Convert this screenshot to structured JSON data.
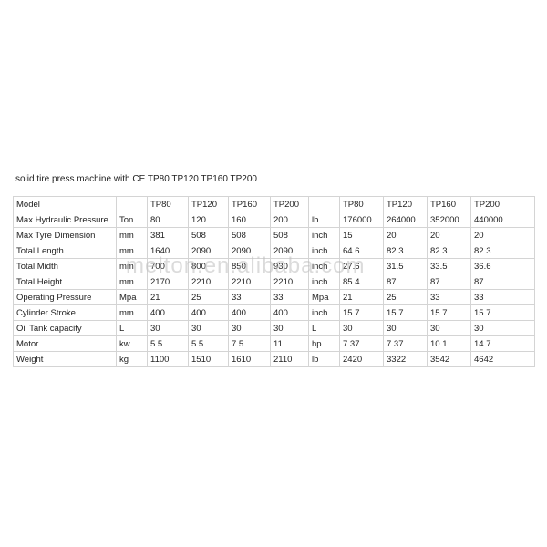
{
  "title": "solid tire press machine with CE TP80 TP120 TP160 TP200",
  "watermark": "melton.en.alibaba.com",
  "table": {
    "header": {
      "label": "Model",
      "metric": [
        "TP80",
        "TP120",
        "TP160",
        "TP200"
      ],
      "imperial": [
        "TP80",
        "TP120",
        "TP160",
        "TP200"
      ]
    },
    "rows": [
      {
        "name": "Max Hydraulic Pressure",
        "unit": "Ton",
        "metric": [
          80,
          120,
          160,
          200
        ],
        "imperial_unit": "lb",
        "imperial": [
          176000,
          264000,
          352000,
          440000
        ]
      },
      {
        "name": "Max Tyre Dimension",
        "unit": "mm",
        "metric": [
          381,
          508,
          508,
          508
        ],
        "imperial_unit": "inch",
        "imperial": [
          15,
          20,
          20,
          20
        ]
      },
      {
        "name": "Total Length",
        "unit": "mm",
        "metric": [
          1640,
          2090,
          2090,
          2090
        ],
        "imperial_unit": "inch",
        "imperial": [
          64.6,
          82.3,
          82.3,
          82.3
        ]
      },
      {
        "name": "Total Midth",
        "unit": "mm",
        "metric": [
          700,
          800,
          850,
          930
        ],
        "imperial_unit": "inch",
        "imperial": [
          27.6,
          31.5,
          33.5,
          36.6
        ]
      },
      {
        "name": "Total Height",
        "unit": "mm",
        "metric": [
          2170,
          2210,
          2210,
          2210
        ],
        "imperial_unit": "inch",
        "imperial": [
          85.4,
          87,
          87,
          87
        ]
      },
      {
        "name": "Operating Pressure",
        "unit": "Mpa",
        "metric": [
          21,
          25,
          33,
          33
        ],
        "imperial_unit": "Mpa",
        "imperial": [
          21,
          25,
          33,
          33
        ]
      },
      {
        "name": "Cylinder Stroke",
        "unit": "mm",
        "metric": [
          400,
          400,
          400,
          400
        ],
        "imperial_unit": "inch",
        "imperial": [
          15.7,
          15.7,
          15.7,
          15.7
        ]
      },
      {
        "name": "Oil Tank capacity",
        "unit": "L",
        "metric": [
          30,
          30,
          30,
          30
        ],
        "imperial_unit": "L",
        "imperial": [
          30,
          30,
          30,
          30
        ]
      },
      {
        "name": "Motor",
        "unit": "kw",
        "metric": [
          5.5,
          5.5,
          7.5,
          11
        ],
        "imperial_unit": "hp",
        "imperial": [
          7.37,
          7.37,
          10.1,
          14.7
        ]
      },
      {
        "name": "Weight",
        "unit": "kg",
        "metric": [
          1100,
          1510,
          1610,
          2110
        ],
        "imperial_unit": "lb",
        "imperial": [
          2420,
          3322,
          3542,
          4642
        ]
      }
    ]
  }
}
